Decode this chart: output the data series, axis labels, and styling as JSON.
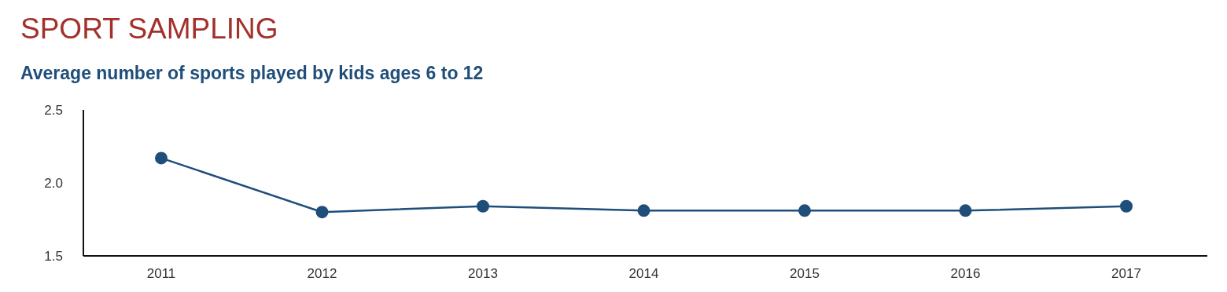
{
  "chart_data": {
    "type": "line",
    "title": "SPORT SAMPLING",
    "subtitle": "Average number of sports played by kids ages 6 to 12",
    "categories": [
      "2011",
      "2012",
      "2013",
      "2014",
      "2015",
      "2016",
      "2017"
    ],
    "series": [
      {
        "color": "#1f4e7a",
        "values": [
          2.17,
          1.8,
          1.84,
          1.81,
          1.81,
          1.81,
          1.84
        ]
      }
    ],
    "ylim": [
      1.5,
      2.5
    ],
    "yticks": [
      1.5,
      {
        "value": 2,
        "label": "2.0"
      },
      2.5
    ],
    "grid": false,
    "legend": false,
    "marker": "circle",
    "line_style": "solid"
  }
}
